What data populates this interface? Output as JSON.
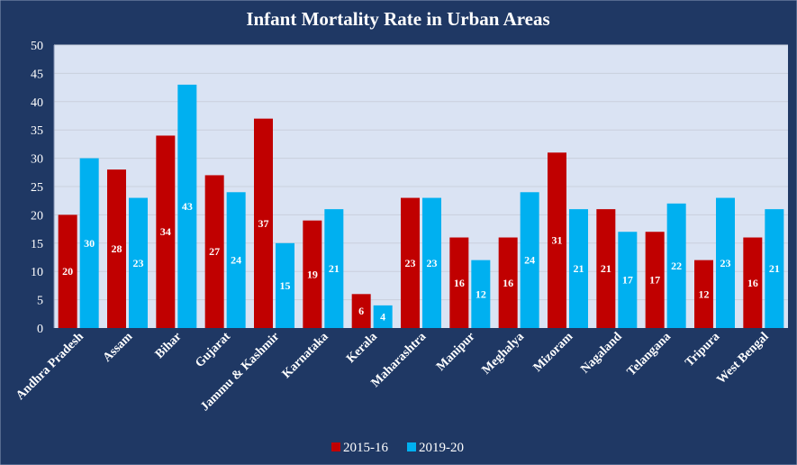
{
  "chart_data": {
    "type": "bar",
    "title": "Infant Mortality Rate in Urban Areas",
    "xlabel": "",
    "ylabel": "",
    "ylim": [
      0,
      50
    ],
    "yticks": [
      0,
      5,
      10,
      15,
      20,
      25,
      30,
      35,
      40,
      45,
      50
    ],
    "grid": true,
    "legend_position": "bottom",
    "categories": [
      "Andhra Pradesh",
      "Assam",
      "Bihar",
      "Gujarat",
      "Jammu & Kashmir",
      "Karnataka",
      "Kerala",
      "Maharashtra",
      "Manipur",
      "Meghalya",
      "Mizoram",
      "Nagaland",
      "Telangana",
      "Tripura",
      "West Bengal"
    ],
    "series": [
      {
        "name": "2015-16",
        "color": "#c00000",
        "values": [
          20,
          28,
          34,
          27,
          37,
          19,
          6,
          23,
          16,
          16,
          31,
          21,
          17,
          12,
          16
        ]
      },
      {
        "name": "2019-20",
        "color": "#00b0f0",
        "values": [
          30,
          23,
          43,
          24,
          15,
          21,
          4,
          23,
          12,
          24,
          21,
          17,
          22,
          23,
          21
        ]
      }
    ],
    "colors": {
      "background": "#1f3864",
      "plot_area": "#dae3f3"
    }
  }
}
